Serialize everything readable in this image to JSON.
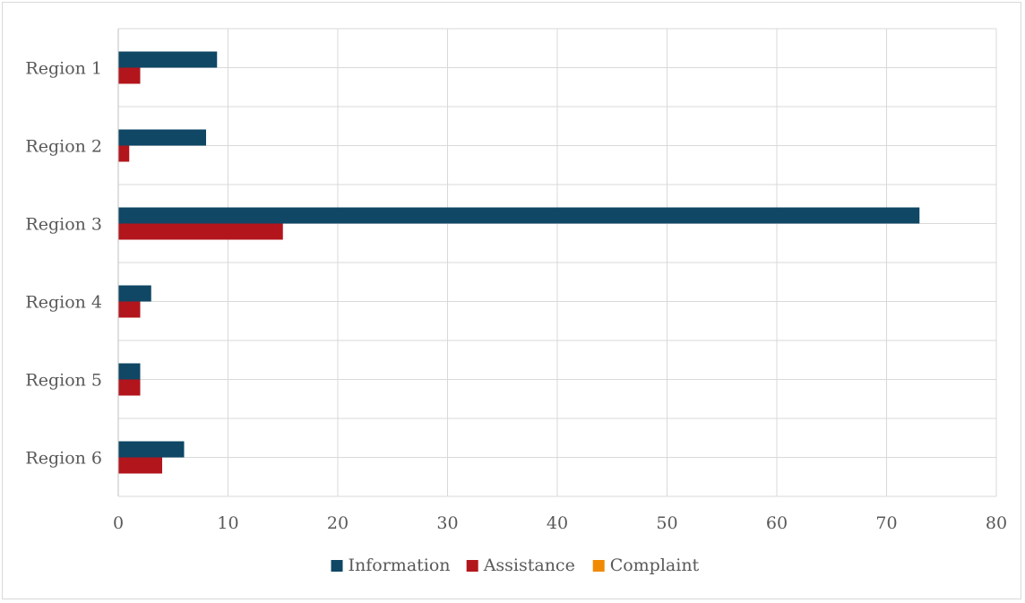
{
  "chart_data": {
    "type": "bar",
    "orientation": "horizontal",
    "categories": [
      "Region 1",
      "Region 2",
      "Region 3",
      "Region 4",
      "Region 5",
      "Region 6"
    ],
    "series": [
      {
        "name": "Information",
        "values": [
          9,
          8,
          73,
          3,
          2,
          6
        ],
        "color": "#0f4765"
      },
      {
        "name": "Assistance",
        "values": [
          2,
          1,
          15,
          2,
          2,
          4
        ],
        "color": "#b3151c"
      },
      {
        "name": "Complaint",
        "values": [
          0,
          0,
          0,
          0,
          0,
          0
        ],
        "color": "#f08a00"
      }
    ],
    "xlim": [
      0,
      80
    ],
    "x_ticks": [
      0,
      10,
      20,
      30,
      40,
      50,
      60,
      70,
      80
    ],
    "grid": true,
    "legend_position": "bottom"
  }
}
